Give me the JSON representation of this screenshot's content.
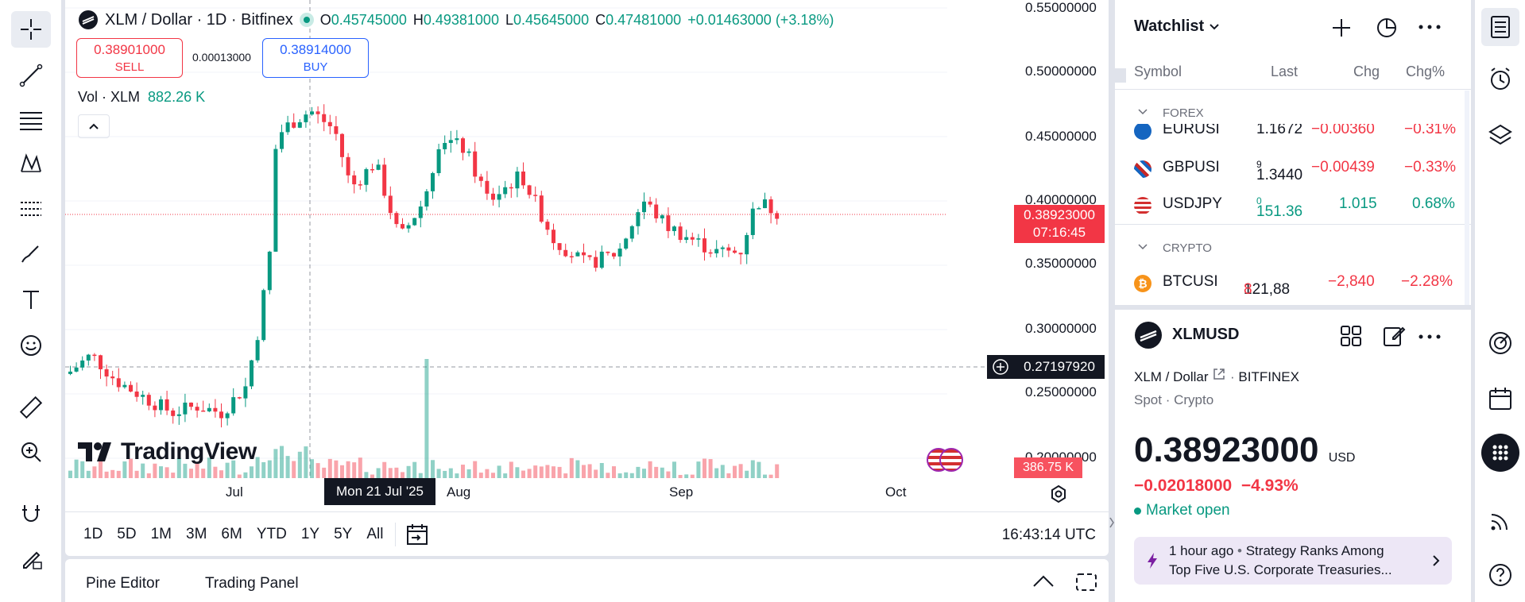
{
  "chart": {
    "symbol_title": "XLM / Dollar · 1D · Bitfinex",
    "open_label": "O",
    "open_value": "0.45745000",
    "high_label": "H",
    "high_value": "0.49381000",
    "low_label": "L",
    "low_value": "0.45645000",
    "close_label": "C",
    "close_value": "0.47481000",
    "change": "+0.01463000 (+3.18%)",
    "sell_price": "0.38901000",
    "sell_label": "SELL",
    "spread": "0.00013000",
    "buy_price": "0.38914000",
    "buy_label": "BUY",
    "volume_label": "Vol · XLM",
    "volume_value": "882.26 K",
    "price_axis": [
      "0.55000000",
      "0.50000000",
      "0.45000000",
      "0.40000000",
      "0.35000000",
      "0.30000000",
      "0.25000000",
      "0.20000000"
    ],
    "current_price": "0.38923000",
    "countdown": "07:16:45",
    "crosshair_price": "0.27197920",
    "volume_axis_value": "386.75 K",
    "time_axis": [
      "Jul",
      "Aug",
      "Sep",
      "Oct"
    ],
    "crosshair_time": "Mon 21 Jul '25",
    "logo_text": "TradingView",
    "ranges": [
      "1D",
      "5D",
      "1M",
      "3M",
      "6M",
      "YTD",
      "1Y",
      "5Y",
      "All"
    ],
    "clock": "16:43:14 UTC",
    "colors": {
      "up": "#089981",
      "down": "#f23645"
    }
  },
  "bottom_panel": {
    "tab_pine": "Pine Editor",
    "tab_trading": "Trading Panel"
  },
  "watchlist": {
    "title": "Watchlist",
    "headers": {
      "symbol": "Symbol",
      "last": "Last",
      "chg": "Chg",
      "chgp": "Chg%"
    },
    "section_forex": "FOREX",
    "section_crypto": "CRYPTO",
    "rows": [
      {
        "symbol": "EURUSI",
        "last": "1.1672",
        "chg": "−0.00360",
        "chgp": "−0.31%"
      },
      {
        "symbol": "GBPUSI",
        "last": "1.3440",
        "last_sup": "9",
        "chg": "−0.00439",
        "chgp": "−0.33%"
      },
      {
        "symbol": "USDJPY",
        "last": "151.36",
        "last_sup": "0",
        "chg": "1.015",
        "chgp": "0.68%"
      },
      {
        "symbol": "BTCUSI",
        "last": "121,88",
        "last_sup": "8",
        "chg": "−2,840",
        "chgp": "−2.28%"
      }
    ]
  },
  "details": {
    "symbol": "XLMUSD",
    "name": "XLM / Dollar",
    "exchange": "BITFINEX",
    "type": "Spot · Crypto",
    "price": "0.38923000",
    "currency": "USD",
    "change": "−0.02018000",
    "change_pct": "−4.93%",
    "status": "Market open",
    "news_time": "1 hour ago",
    "news_line1": "Strategy Ranks Among",
    "news_line2": "Top Five U.S. Corporate Treasuries..."
  },
  "icons": [
    "crosshair-icon",
    "trendline-icon",
    "fib-icon",
    "pattern-icon",
    "projection-icon",
    "brush-icon",
    "text-icon",
    "emoji-icon",
    "ruler-icon",
    "zoom-icon",
    "magnet-icon",
    "lock-draw-icon",
    "watchlist-icon",
    "alert-clock-icon",
    "layers-icon",
    "target-icon",
    "calendar-icon",
    "apps-icon",
    "broadcast-icon",
    "help-icon"
  ]
}
